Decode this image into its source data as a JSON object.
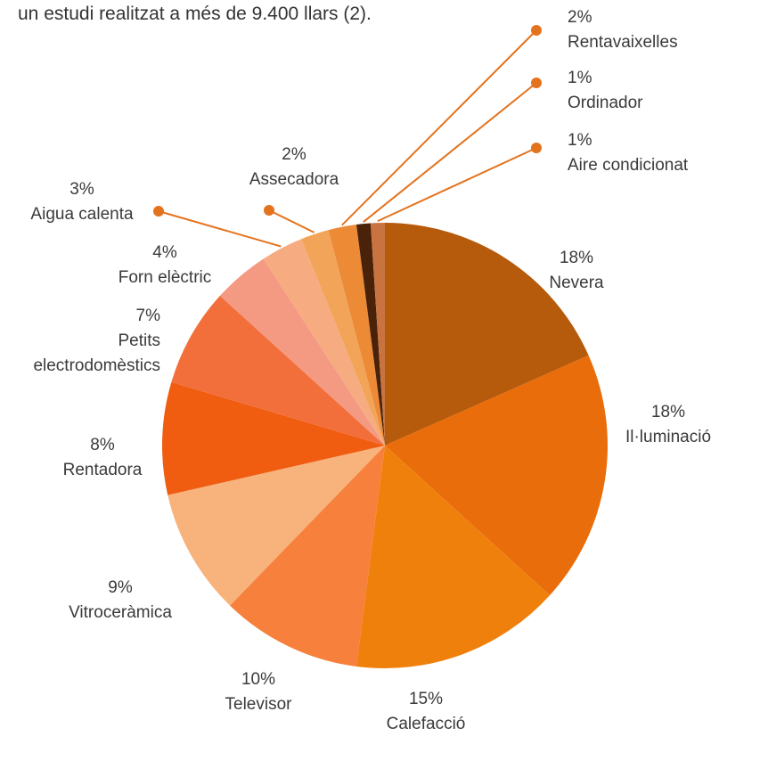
{
  "chart_data": {
    "type": "pie",
    "title": "un estudi realitzat a més de 9.400 llars (2).",
    "categories": [
      "Nevera",
      "Il·luminació",
      "Calefacció",
      "Televisor",
      "Vitroceràmica",
      "Rentadora",
      "Petits electrodomèstics",
      "Forn elèctric",
      "Aigua calenta",
      "Assecadora",
      "Rentavaixelles",
      "Ordinador",
      "Aire condicionat"
    ],
    "values": [
      18,
      18,
      15,
      10,
      9,
      8,
      7,
      4,
      3,
      2,
      2,
      1,
      1
    ],
    "value_labels": [
      "18%",
      "18%",
      "15%",
      "10%",
      "9%",
      "8%",
      "7%",
      "4%",
      "3%",
      "2%",
      "2%",
      "1%",
      "1%"
    ],
    "colors": [
      "#b65a0c",
      "#e96d0b",
      "#f0800c",
      "#f6803c",
      "#f8b27c",
      "#f05c10",
      "#f26f3c",
      "#f59a82",
      "#f6ab80",
      "#f2a558",
      "#ec8a36",
      "#4a220a",
      "#c97440"
    ]
  }
}
